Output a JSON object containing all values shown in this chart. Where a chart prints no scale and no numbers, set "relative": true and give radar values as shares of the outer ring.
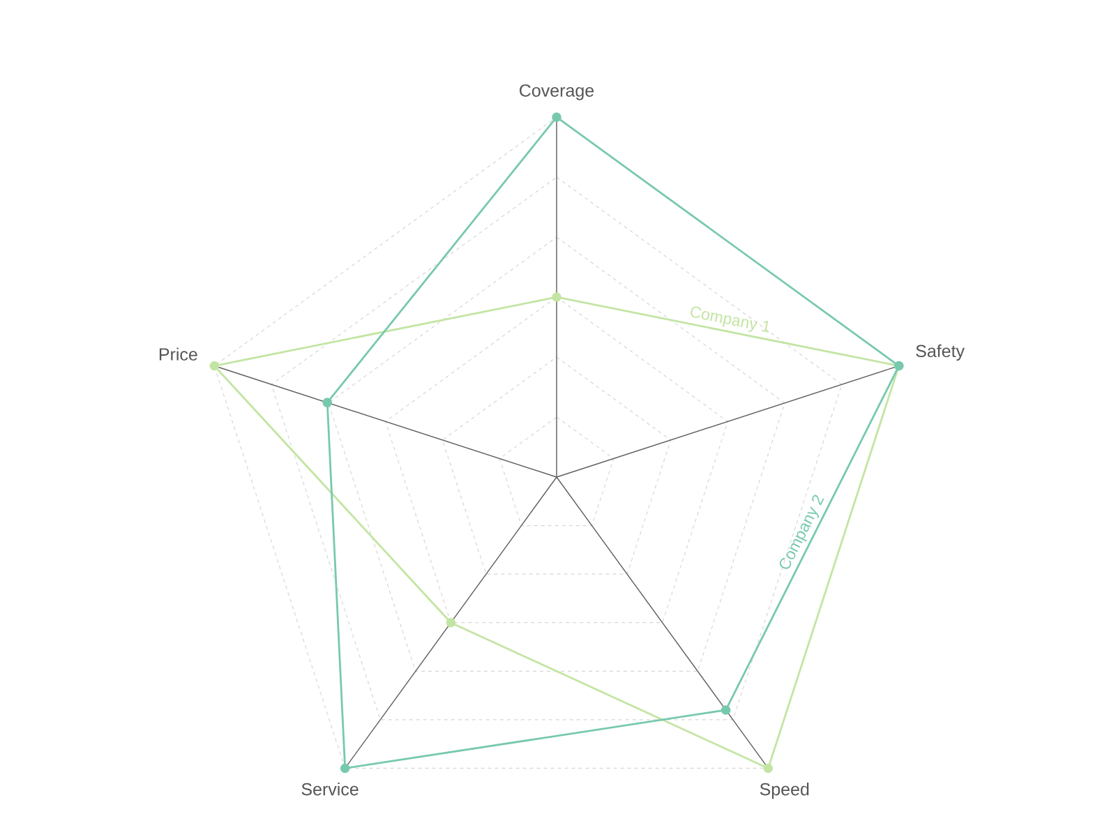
{
  "chart_data": {
    "type": "radar",
    "relative": true,
    "grid": true,
    "marker": "circle",
    "categories": [
      "Coverage",
      "Safety",
      "Speed",
      "Service",
      "Price"
    ],
    "series": [
      {
        "name": "Company 1",
        "color": "#c3e5a3",
        "values": [
          0.5,
          1.0,
          1.0,
          0.5,
          1.0
        ]
      },
      {
        "name": "Company 2",
        "color": "#77c9ae",
        "values": [
          1.0,
          1.0,
          0.8,
          1.0,
          0.67
        ]
      }
    ]
  }
}
